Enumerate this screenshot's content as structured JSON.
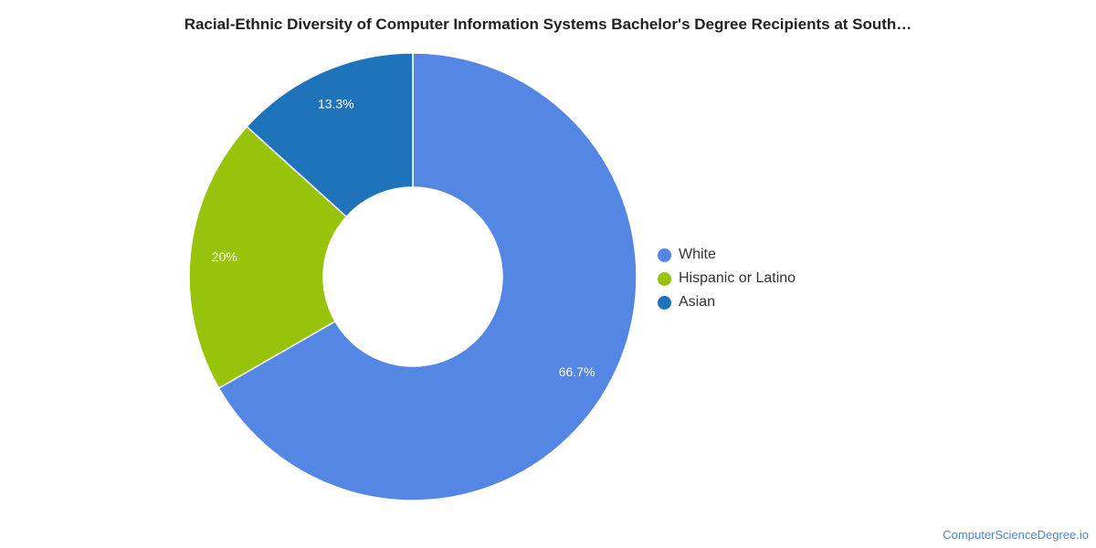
{
  "chart_data": {
    "type": "pie",
    "title": "Racial-Ethnic Diversity of Computer Information Systems Bachelor's Degree Recipients at South…",
    "categories": [
      "White",
      "Hispanic or Latino",
      "Asian"
    ],
    "values": [
      66.7,
      20,
      13.3
    ],
    "data_labels": [
      "66.7%",
      "20%",
      "13.3%"
    ],
    "colors": [
      "#5486e3",
      "#97c30a",
      "#1f73bb"
    ],
    "donut": true,
    "legend_position": "right"
  },
  "source_text": "ComputerScienceDegree.io"
}
